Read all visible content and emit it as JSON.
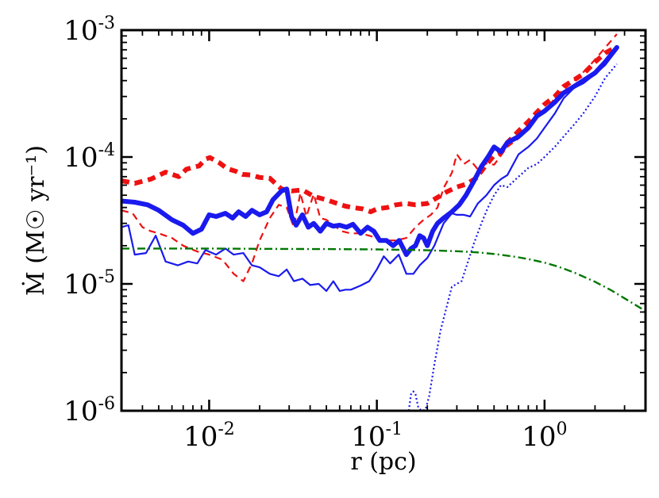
{
  "chart_data": {
    "type": "line",
    "title": "",
    "xlabel": "r (pc)",
    "ylabel": "Ṁ (M☉ yr⁻¹)",
    "x_scale": "log",
    "y_scale": "log",
    "xlim": [
      0.003,
      4.0
    ],
    "ylim": [
      1e-06,
      0.001
    ],
    "x_ticks": [
      {
        "value": 0.01,
        "base": "10",
        "exp": "-2"
      },
      {
        "value": 0.1,
        "base": "10",
        "exp": "-1"
      },
      {
        "value": 1.0,
        "base": "10",
        "exp": "0"
      }
    ],
    "y_ticks": [
      {
        "value": 1e-06,
        "base": "10",
        "exp": "-6"
      },
      {
        "value": 1e-05,
        "base": "10",
        "exp": "-5"
      },
      {
        "value": 0.0001,
        "base": "10",
        "exp": "-4"
      },
      {
        "value": 0.001,
        "base": "10",
        "exp": "-3"
      }
    ],
    "grid": false,
    "legend": "none",
    "series": [
      {
        "name": "red-thick-dashed",
        "color": "#ee1111",
        "width": 6,
        "dash": "10,7",
        "x": [
          0.003,
          0.0036,
          0.0045,
          0.0055,
          0.0066,
          0.0073,
          0.008,
          0.0087,
          0.0095,
          0.0101,
          0.0115,
          0.0128,
          0.0145,
          0.0158,
          0.018,
          0.02,
          0.023,
          0.027,
          0.031,
          0.036,
          0.042,
          0.05,
          0.058,
          0.065,
          0.072,
          0.082,
          0.092,
          0.1,
          0.115,
          0.13,
          0.15,
          0.17,
          0.2,
          0.23,
          0.26,
          0.3,
          0.34,
          0.39,
          0.45,
          0.5,
          0.55,
          0.6,
          0.7,
          0.8,
          0.9,
          1.0,
          1.15,
          1.3,
          1.5,
          1.7,
          2.0,
          2.3,
          2.7
        ],
        "y": [
          6.5e-05,
          6.2e-05,
          6.7e-05,
          7.6e-05,
          7e-05,
          8e-05,
          8.3e-05,
          8.5e-05,
          9.6e-05,
          9.9e-05,
          9e-05,
          8.1e-05,
          7.7e-05,
          7.3e-05,
          7.2e-05,
          6.9e-05,
          6.8e-05,
          5.6e-05,
          5.4e-05,
          5.5e-05,
          4.9e-05,
          4.6e-05,
          4.3e-05,
          4.1e-05,
          4e-05,
          3.9e-05,
          3.7e-05,
          3.9e-05,
          4e-05,
          4.2e-05,
          4.3e-05,
          4.2e-05,
          4.3e-05,
          4.8e-05,
          5.3e-05,
          5.8e-05,
          6.1e-05,
          6.8e-05,
          8.7e-05,
          0.000103,
          0.000108,
          0.00013,
          0.00016,
          0.00019,
          0.000225,
          0.00026,
          0.0003,
          0.00036,
          0.000405,
          0.00045,
          0.00056,
          0.00066,
          0.00074
        ]
      },
      {
        "name": "red-thin-dashed",
        "color": "#ee1111",
        "width": 2.2,
        "dash": "9,6",
        "x": [
          0.003,
          0.0035,
          0.004,
          0.0045,
          0.005,
          0.006,
          0.007,
          0.0085,
          0.01,
          0.012,
          0.014,
          0.016,
          0.018,
          0.02,
          0.023,
          0.026,
          0.029,
          0.032,
          0.035,
          0.038,
          0.042,
          0.046,
          0.05,
          0.055,
          0.062,
          0.07,
          0.08,
          0.09,
          0.1,
          0.115,
          0.13,
          0.15,
          0.17,
          0.19,
          0.21,
          0.23,
          0.25,
          0.28,
          0.3,
          0.33,
          0.36,
          0.4,
          0.45,
          0.5,
          0.6,
          0.7,
          0.8,
          1.0,
          1.2,
          1.5,
          1.8,
          2.2,
          2.7
        ],
        "y": [
          3.8e-05,
          3.6e-05,
          2.8e-05,
          2.6e-05,
          2.5e-05,
          2.3e-05,
          2e-05,
          1.8e-05,
          1.7e-05,
          1.55e-05,
          1.2e-05,
          1.05e-05,
          1.45e-05,
          2.2e-05,
          3.3e-05,
          4.2e-05,
          4e-05,
          2.8e-05,
          5.2e-05,
          3.4e-05,
          5.1e-05,
          3.3e-05,
          3.2e-05,
          2.9e-05,
          2.6e-05,
          2.5e-05,
          2.5e-05,
          2.4e-05,
          2.3e-05,
          2.2e-05,
          2.2e-05,
          2.3e-05,
          2.8e-05,
          3.2e-05,
          3.5e-05,
          4e-05,
          5.7e-05,
          7.5e-05,
          0.000105,
          8.8e-05,
          9.5e-05,
          8e-05,
          8.9e-05,
          8.7e-05,
          0.00012,
          0.00014,
          0.00018,
          0.00023,
          0.00031,
          0.0004,
          0.0005,
          0.00068,
          0.00093
        ]
      },
      {
        "name": "blue-thick-solid",
        "color": "#1a1aee",
        "width": 6,
        "dash": "",
        "x": [
          0.003,
          0.0036,
          0.0043,
          0.005,
          0.006,
          0.007,
          0.008,
          0.009,
          0.01,
          0.011,
          0.0125,
          0.0138,
          0.015,
          0.0165,
          0.018,
          0.02,
          0.022,
          0.024,
          0.027,
          0.029,
          0.031,
          0.033,
          0.036,
          0.039,
          0.042,
          0.046,
          0.05,
          0.055,
          0.06,
          0.066,
          0.072,
          0.08,
          0.088,
          0.096,
          0.104,
          0.114,
          0.125,
          0.136,
          0.15,
          0.16,
          0.17,
          0.18,
          0.19,
          0.2,
          0.215,
          0.23,
          0.25,
          0.28,
          0.31,
          0.34,
          0.38,
          0.42,
          0.46,
          0.5,
          0.55,
          0.6,
          0.7,
          0.8,
          0.9,
          1.0,
          1.15,
          1.3,
          1.5,
          1.7,
          2.0,
          2.3,
          2.7
        ],
        "y": [
          4.5e-05,
          4.4e-05,
          4.2e-05,
          3.8e-05,
          3.2e-05,
          2.9e-05,
          2.5e-05,
          2.7e-05,
          3.5e-05,
          3.4e-05,
          3.6e-05,
          3.3e-05,
          3.7e-05,
          3.4e-05,
          3.8e-05,
          3.5e-05,
          3.7e-05,
          4.6e-05,
          5.4e-05,
          5.6e-05,
          3.4e-05,
          2.9e-05,
          3.5e-05,
          2.8e-05,
          3e-05,
          2.6e-05,
          3e-05,
          2.85e-05,
          2.9e-05,
          2.8e-05,
          2.95e-05,
          2.5e-05,
          2.8e-05,
          2.6e-05,
          2.2e-05,
          2.2e-05,
          2e-05,
          2.2e-05,
          1.7e-05,
          1.9e-05,
          2e-05,
          2.4e-05,
          2.3e-05,
          2e-05,
          2.6e-05,
          3e-05,
          3.3e-05,
          3.7e-05,
          4.2e-05,
          5e-05,
          6.5e-05,
          8.4e-05,
          0.0001,
          0.00012,
          0.00011,
          0.00013,
          0.000145,
          0.00017,
          0.00021,
          0.00023,
          0.00027,
          0.00032,
          0.00036,
          0.0004,
          0.00046,
          0.00056,
          0.00073
        ]
      },
      {
        "name": "blue-thin-solid",
        "color": "#1a1aee",
        "width": 2.2,
        "dash": "",
        "x": [
          0.003,
          0.0033,
          0.0036,
          0.0042,
          0.0048,
          0.0055,
          0.0065,
          0.0075,
          0.0085,
          0.0095,
          0.011,
          0.0125,
          0.014,
          0.016,
          0.018,
          0.02,
          0.023,
          0.026,
          0.029,
          0.032,
          0.036,
          0.04,
          0.045,
          0.05,
          0.055,
          0.06,
          0.065,
          0.07,
          0.08,
          0.09,
          0.1,
          0.11,
          0.12,
          0.135,
          0.15,
          0.165,
          0.18,
          0.2,
          0.22,
          0.25,
          0.28,
          0.3,
          0.33,
          0.36,
          0.4,
          0.45,
          0.5,
          0.55,
          0.6,
          0.7,
          0.8,
          0.9,
          1.0,
          1.15,
          1.3,
          1.5,
          1.7,
          2.0,
          2.3,
          2.7
        ],
        "y": [
          2.8e-05,
          2.9e-05,
          1.7e-05,
          1.75e-05,
          2.4e-05,
          1.5e-05,
          1.4e-05,
          1.5e-05,
          1.45e-05,
          1.85e-05,
          1.7e-05,
          1.9e-05,
          1.7e-05,
          1.75e-05,
          1.4e-05,
          1.35e-05,
          1.2e-05,
          1.15e-05,
          1.3e-05,
          1.05e-05,
          1.1e-05,
          9.8e-06,
          1e-05,
          8.8e-06,
          1.05e-05,
          8.8e-06,
          9e-06,
          9e-06,
          9.7e-06,
          1.05e-05,
          1.3e-05,
          1.65e-05,
          1.45e-05,
          1.7e-05,
          1.2e-05,
          1.2e-05,
          1.4e-05,
          1.6e-05,
          2e-05,
          3e-05,
          3.6e-05,
          3.5e-05,
          3.5e-05,
          3.4e-05,
          4.3e-05,
          5e-05,
          6e-05,
          6.7e-05,
          7.2e-05,
          0.000105,
          0.00012,
          0.00014,
          0.00017,
          0.00022,
          0.00029,
          0.00035,
          0.00038,
          0.00045,
          0.00053,
          0.0007
        ]
      },
      {
        "name": "blue-dotted",
        "color": "#1a1aee",
        "width": 2.2,
        "dash": "2,3",
        "x": [
          0.155,
          0.16,
          0.165,
          0.17,
          0.177,
          0.185,
          0.195,
          0.205,
          0.22,
          0.24,
          0.26,
          0.28,
          0.3,
          0.32,
          0.35,
          0.38,
          0.42,
          0.46,
          0.5,
          0.55,
          0.6,
          0.7,
          0.8,
          0.9,
          1.0,
          1.15,
          1.3,
          1.5,
          1.7,
          2.0,
          2.3,
          2.7
        ],
        "y": [
          1e-06,
          1.35e-06,
          1.42e-06,
          1.35e-06,
          1.05e-06,
          1e-06,
          1.02e-06,
          1.3e-06,
          2.3e-06,
          4.3e-06,
          6.5e-06,
          9.5e-06,
          1e-05,
          1.05e-05,
          1.5e-05,
          2.1e-05,
          3e-05,
          4e-05,
          5e-05,
          6e-05,
          5.8e-05,
          7e-05,
          8.2e-05,
          8.8e-05,
          0.0001,
          0.00012,
          0.000145,
          0.00018,
          0.00022,
          0.0003,
          0.00042,
          0.00054
        ]
      },
      {
        "name": "green-dashdot",
        "color": "#007700",
        "width": 2.4,
        "dash": "10,4,2,4",
        "x": [
          0.003,
          0.005,
          0.01,
          0.02,
          0.05,
          0.1,
          0.2,
          0.3,
          0.4,
          0.5,
          0.6,
          0.7,
          0.8,
          1.0,
          1.2,
          1.5,
          2.0,
          2.5,
          3.0,
          3.5,
          4.0
        ],
        "y": [
          1.9e-05,
          1.9e-05,
          1.9e-05,
          1.89e-05,
          1.88e-05,
          1.87e-05,
          1.84e-05,
          1.81e-05,
          1.77e-05,
          1.72e-05,
          1.67e-05,
          1.62e-05,
          1.57e-05,
          1.47e-05,
          1.37e-05,
          1.23e-05,
          1.04e-05,
          8.9e-06,
          7.7e-06,
          6.8e-06,
          6.1e-06
        ]
      }
    ]
  }
}
